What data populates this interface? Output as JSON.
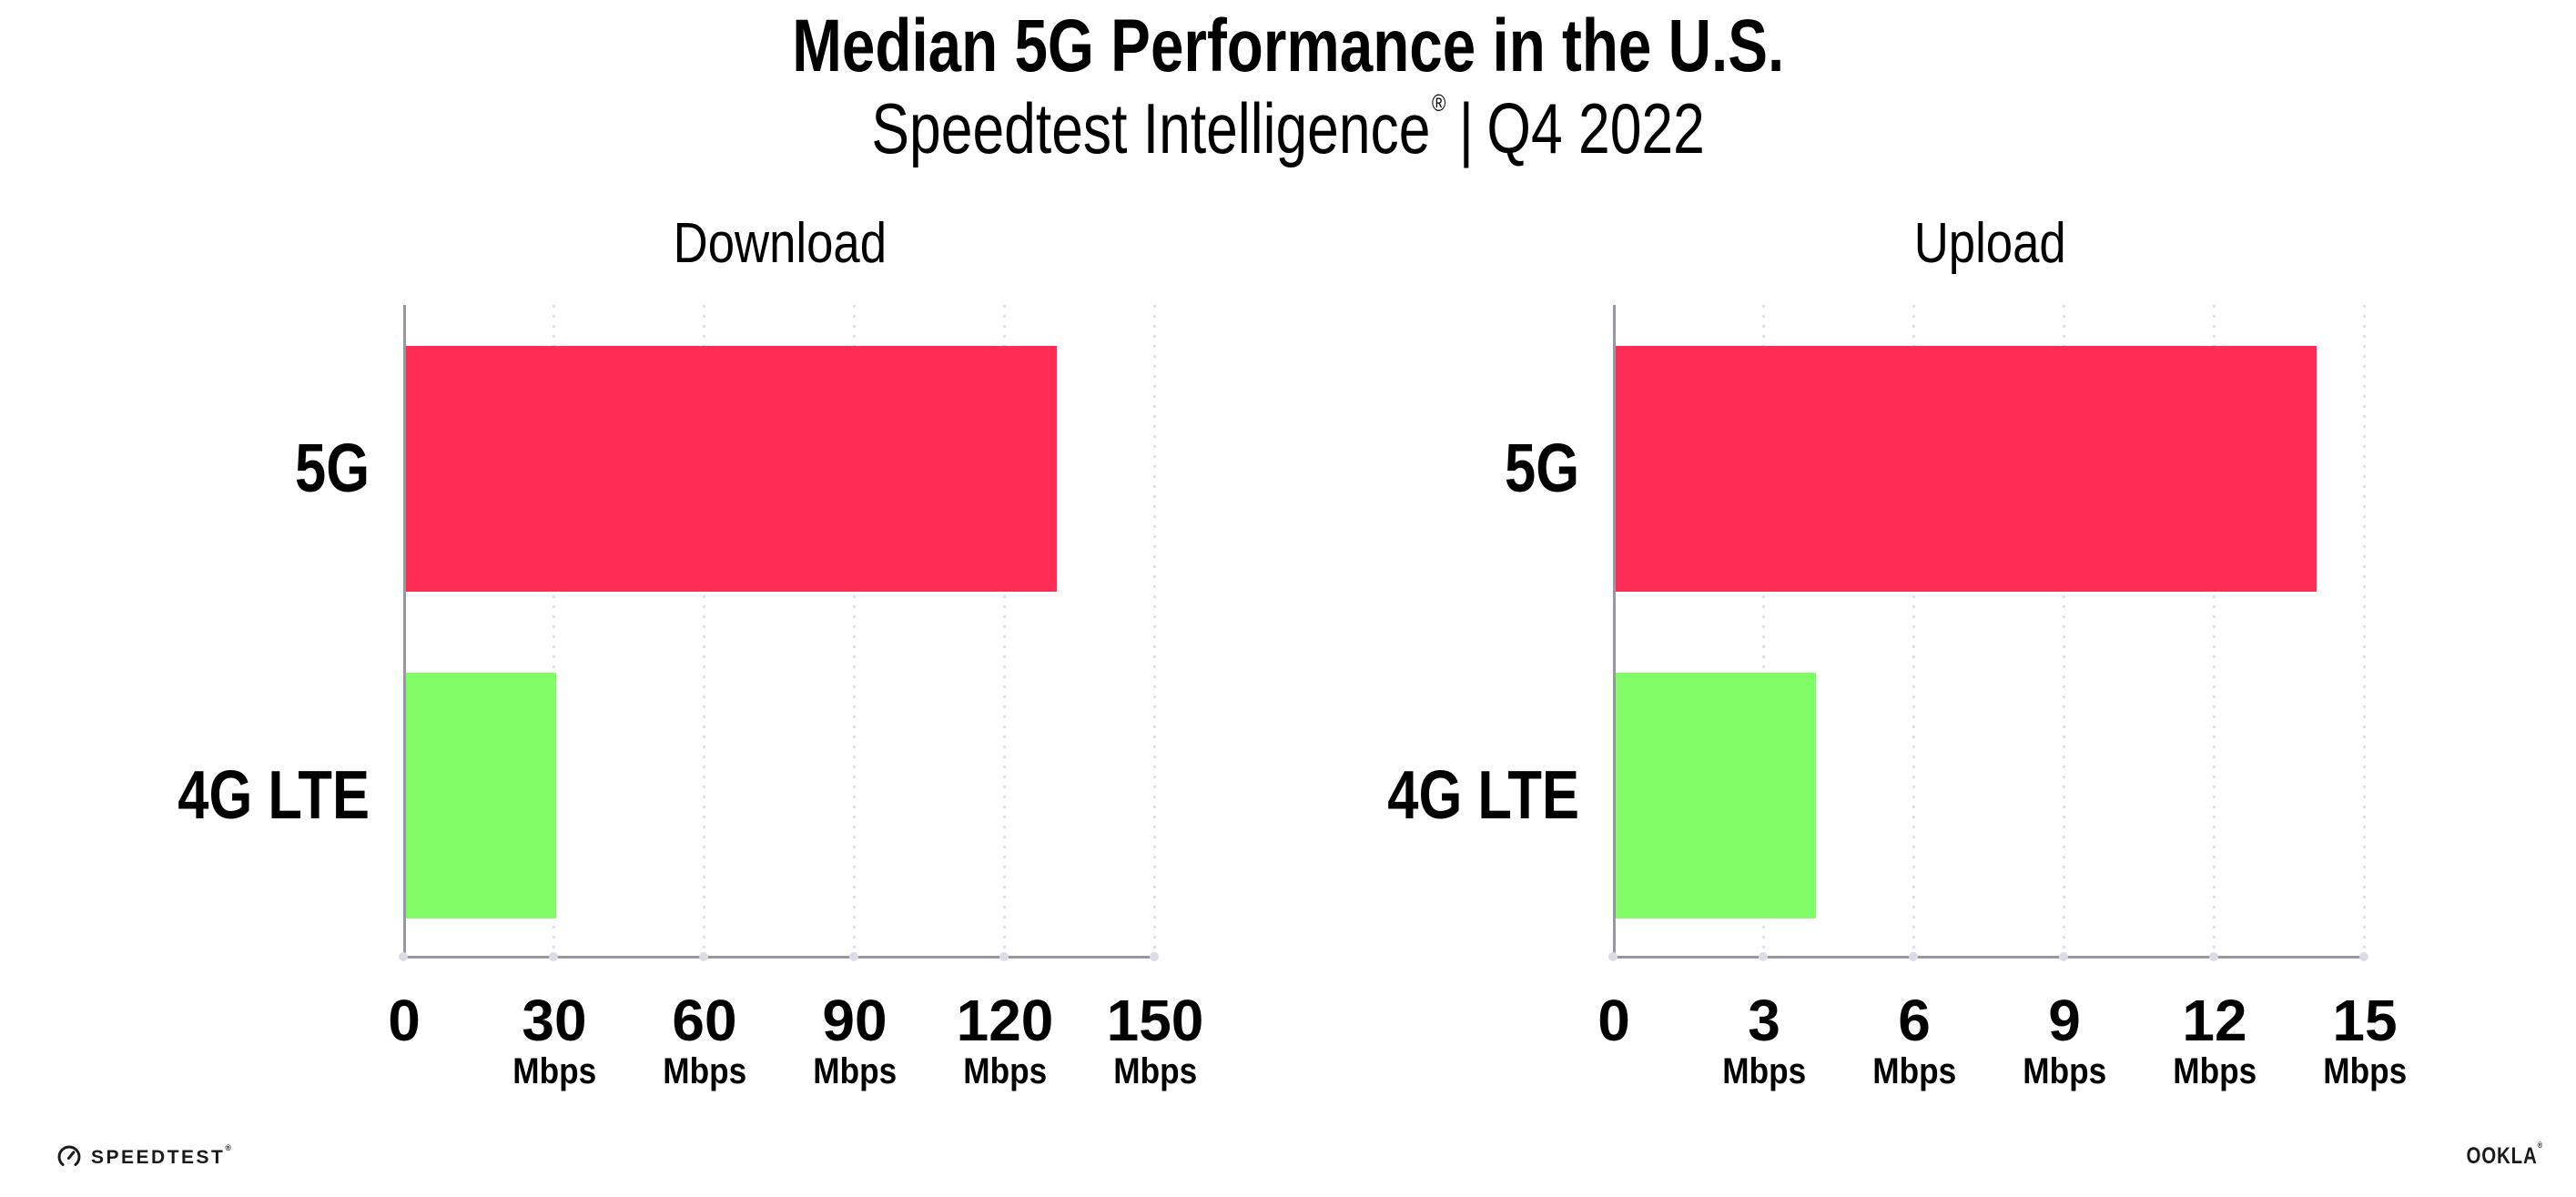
{
  "header": {
    "title": "Median 5G Performance in the U.S.",
    "subtitle_brand": "Speedtest Intelligence",
    "subtitle_registered": "®",
    "subtitle_divider": "|",
    "subtitle_period": "Q4 2022"
  },
  "chart_data": [
    {
      "type": "bar",
      "orientation": "horizontal",
      "title": "Download",
      "categories": [
        "5G",
        "4G LTE"
      ],
      "values": [
        130,
        30
      ],
      "unit": "Mbps",
      "xlim": [
        0,
        150
      ],
      "xticks": [
        0,
        30,
        60,
        90,
        120,
        150
      ],
      "bar_colors": [
        "#ff2d55",
        "#7ffc66"
      ],
      "grid": "dotted-vertical",
      "legend": "none"
    },
    {
      "type": "bar",
      "orientation": "horizontal",
      "title": "Upload",
      "categories": [
        "5G",
        "4G LTE"
      ],
      "values": [
        14,
        4
      ],
      "unit": "Mbps",
      "xlim": [
        0,
        15
      ],
      "xticks": [
        0,
        3,
        6,
        9,
        12,
        15
      ],
      "bar_colors": [
        "#ff2d55",
        "#7ffc66"
      ],
      "grid": "dotted-vertical",
      "legend": "none"
    }
  ],
  "colors": {
    "bar_5g": "#ff2d55",
    "bar_4g_lte": "#7ffc66",
    "axis": "#97979f",
    "gridline": "#e2e2ec",
    "text": "#000000"
  },
  "footer": {
    "speedtest_wordmark": "SPEEDTEST",
    "speedtest_registered": "®",
    "ookla_wordmark": "OOKLA",
    "ookla_registered": "®"
  }
}
